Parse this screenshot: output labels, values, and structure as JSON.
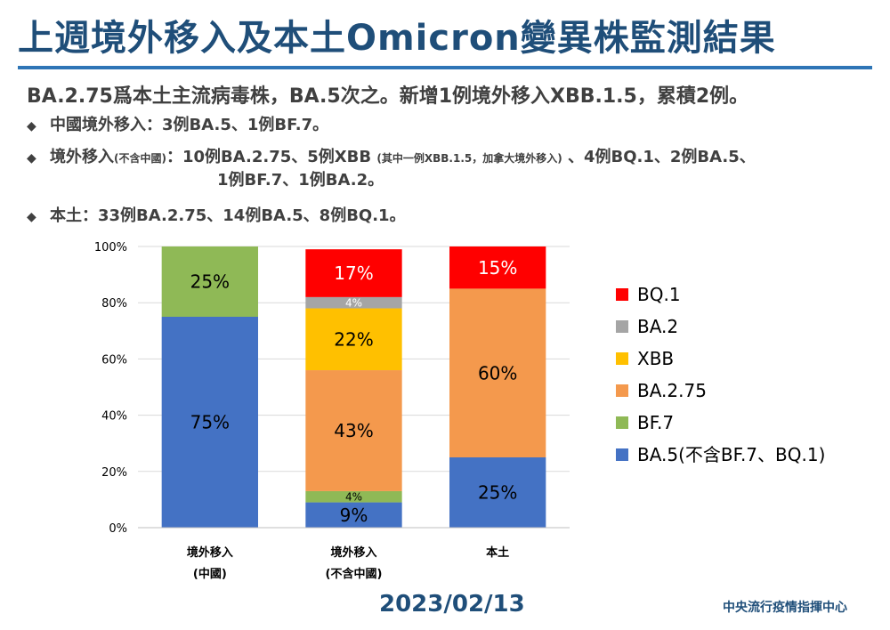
{
  "header": {
    "title": "上週境外移入及本土Omicron變異株監測結果",
    "summary": "BA.2.75爲本土主流病毒株，BA.5次之。新增1例境外移入XBB.1.5，累積2例。"
  },
  "bullets": {
    "b1": "中國境外移入：3例BA.5、1例BF.7。",
    "b2_a": "境外移入",
    "b2_small1": "(不含中國)",
    "b2_b": "：10例BA.2.75、5例XBB ",
    "b2_small2": "(其中一例XBB.1.5，加拿大境外移入)",
    "b2_c": " 、4例BQ.1、2例BA.5、",
    "b2_cont": "1例BF.7、1例BA.2。",
    "b3": "本土：33例BA.2.75、14例BA.5、8例BQ.1。",
    "marker": "◆"
  },
  "chart_data": {
    "type": "bar",
    "stacked": true,
    "categories": [
      "境外移入\n(中國)",
      "境外移入\n(不含中國)",
      "本土"
    ],
    "series": [
      {
        "name": "BA.5(不含BF.7、BQ.1)",
        "color": "#4472c4",
        "values": [
          75,
          9,
          25
        ]
      },
      {
        "name": "BF.7",
        "color": "#8fb956",
        "values": [
          25,
          4,
          0
        ]
      },
      {
        "name": "BA.2.75",
        "color": "#f4994d",
        "values": [
          0,
          43,
          60
        ]
      },
      {
        "name": "XBB",
        "color": "#ffc000",
        "values": [
          0,
          22,
          0
        ]
      },
      {
        "name": "BA.2",
        "color": "#a5a5a5",
        "values": [
          0,
          4,
          0
        ]
      },
      {
        "name": "BQ.1",
        "color": "#ff0000",
        "values": [
          0,
          17,
          15
        ]
      }
    ],
    "yticks": [
      "0%",
      "20%",
      "40%",
      "60%",
      "80%",
      "100%"
    ],
    "ylim": [
      0,
      100
    ],
    "legend_order": [
      "BQ.1",
      "BA.2",
      "XBB",
      "BA.2.75",
      "BF.7",
      "BA.5(不含BF.7、BQ.1)"
    ],
    "legend_position": "right",
    "grid": true
  },
  "footer": {
    "date": "2023/02/13",
    "org": "中央流行疫情指揮中心"
  }
}
